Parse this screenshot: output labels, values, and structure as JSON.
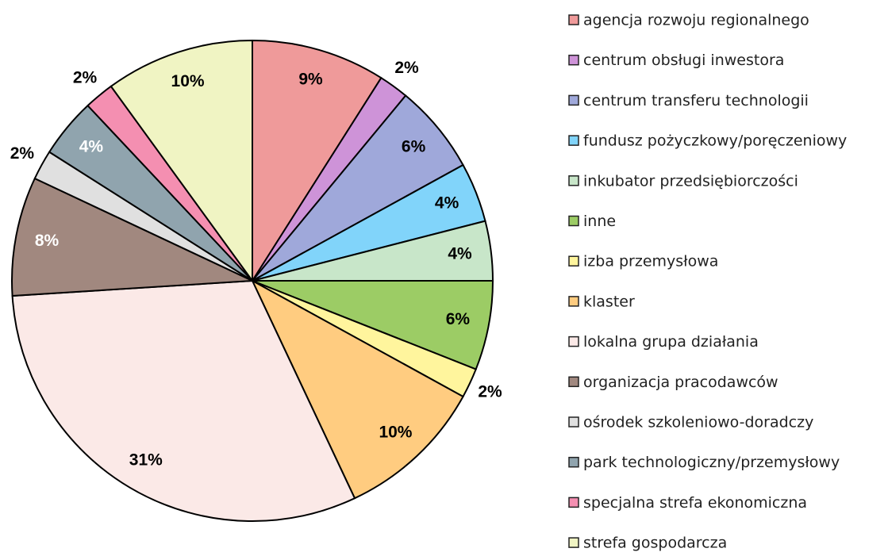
{
  "chart_data": {
    "type": "pie",
    "categories": [
      "agencja rozwoju regionalnego",
      "centrum obsługi inwestora",
      "centrum transferu technologii",
      "fundusz pożyczkowy/poręczeniowy",
      "inkubator przedsiębiorczości",
      "inne",
      "izba przemysłowa",
      "klaster",
      "lokalna grupa działania",
      "organizacja pracodawców",
      "ośrodek szkoleniowo-doradczy",
      "park technologiczny/przemysłowy",
      "specjalna strefa ekonomiczna",
      "strefa gospodarcza"
    ],
    "values": [
      9,
      2,
      6,
      4,
      4,
      6,
      2,
      10,
      31,
      8,
      2,
      4,
      2,
      10
    ],
    "value_labels": [
      "9%",
      "2%",
      "6%",
      "4%",
      "4%",
      "6%",
      "2%",
      "10%",
      "31%",
      "8%",
      "2%",
      "4%",
      "2%",
      "10%"
    ],
    "colors": [
      "#ef9a9a",
      "#ce93d8",
      "#9fa8da",
      "#81d4fa",
      "#c8e6c9",
      "#9ccc65",
      "#fff59d",
      "#ffcc80",
      "#fbe9e7",
      "#a1887f",
      "#e0e0e0",
      "#90a4ae",
      "#f48fb1",
      "#f0f4c3"
    ],
    "legend": "right"
  }
}
